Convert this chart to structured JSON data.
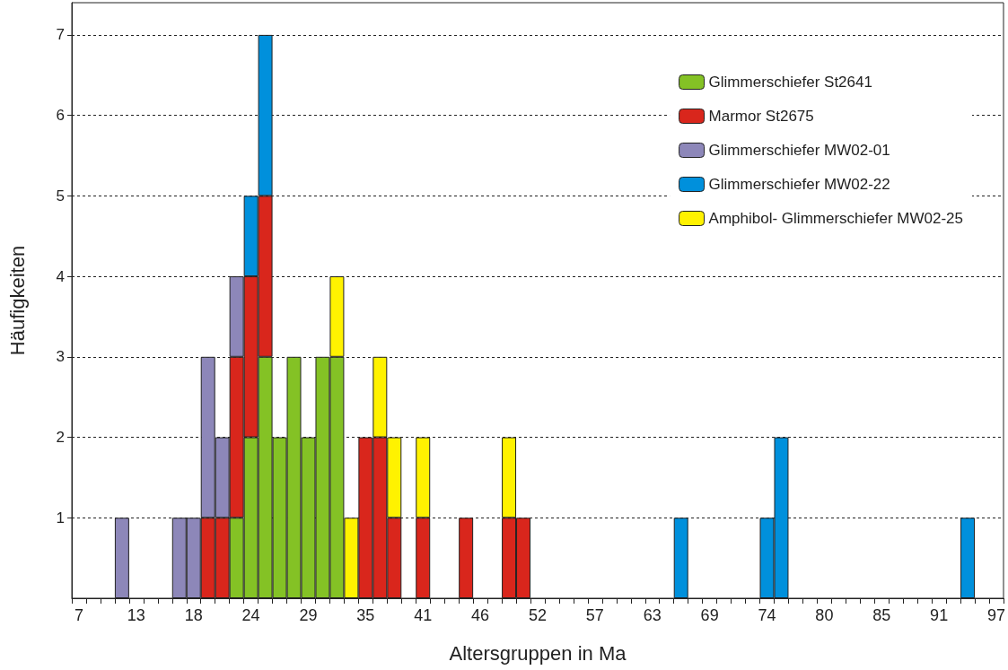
{
  "chart_data": {
    "type": "bar",
    "stacked": true,
    "xlabel": "Altersgruppen in Ma",
    "ylabel": "Häufigkeiten",
    "categories": [
      "7",
      null,
      null,
      null,
      "13",
      null,
      null,
      null,
      "18",
      null,
      null,
      null,
      "24",
      null,
      null,
      null,
      "29",
      null,
      null,
      null,
      "35",
      null,
      null,
      null,
      "41",
      null,
      null,
      null,
      "46",
      null,
      null,
      null,
      "52",
      null,
      null,
      null,
      "57",
      null,
      null,
      null,
      "63",
      null,
      null,
      null,
      "69",
      null,
      null,
      null,
      "74",
      null,
      null,
      null,
      "80",
      null,
      null,
      null,
      "85",
      null,
      null,
      null,
      "91",
      null,
      null,
      null,
      "97"
    ],
    "series": [
      {
        "name": "Glimmerschiefer St2641",
        "color": "#84c225",
        "values": [
          null,
          null,
          null,
          null,
          null,
          null,
          null,
          null,
          null,
          null,
          null,
          1,
          2,
          3,
          2,
          3,
          2,
          3,
          3,
          null,
          null,
          null,
          null,
          null,
          null,
          null,
          null,
          null,
          null,
          null,
          null,
          null,
          null,
          null,
          null,
          null,
          null,
          null,
          null,
          null,
          null,
          null,
          null,
          null,
          null,
          null,
          null,
          null,
          null,
          null,
          null,
          null,
          null,
          null,
          null,
          null,
          null,
          null,
          null,
          null,
          null,
          null,
          null,
          null,
          null
        ]
      },
      {
        "name": "Marmor St2675",
        "color": "#d9261c",
        "values": [
          null,
          null,
          null,
          null,
          null,
          null,
          null,
          null,
          null,
          1,
          1,
          2,
          2,
          2,
          null,
          null,
          null,
          null,
          null,
          null,
          2,
          2,
          1,
          null,
          1,
          null,
          null,
          1,
          null,
          null,
          1,
          1,
          null,
          null,
          null,
          null,
          null,
          null,
          null,
          null,
          null,
          null,
          null,
          null,
          null,
          null,
          null,
          null,
          null,
          null,
          null,
          null,
          null,
          null,
          null,
          null,
          null,
          null,
          null,
          null,
          null,
          null,
          null,
          null,
          null
        ]
      },
      {
        "name": "Glimmerschiefer MW02-01",
        "color": "#8d87b9",
        "values": [
          null,
          null,
          null,
          1,
          null,
          null,
          null,
          1,
          1,
          2,
          1,
          1,
          null,
          null,
          null,
          null,
          null,
          null,
          null,
          null,
          null,
          null,
          null,
          null,
          null,
          null,
          null,
          null,
          null,
          null,
          null,
          null,
          null,
          null,
          null,
          null,
          null,
          null,
          null,
          null,
          null,
          null,
          null,
          null,
          null,
          null,
          null,
          null,
          null,
          null,
          null,
          null,
          null,
          null,
          null,
          null,
          null,
          null,
          null,
          null,
          null,
          null,
          null,
          null,
          null
        ]
      },
      {
        "name": "Glimmerschiefer MW02-22",
        "color": "#0090dc",
        "values": [
          null,
          null,
          null,
          null,
          null,
          null,
          null,
          null,
          null,
          null,
          null,
          null,
          1,
          2,
          null,
          null,
          null,
          null,
          null,
          null,
          null,
          null,
          null,
          null,
          null,
          null,
          null,
          null,
          null,
          null,
          null,
          null,
          null,
          null,
          null,
          null,
          null,
          null,
          null,
          null,
          null,
          null,
          1,
          null,
          null,
          null,
          null,
          null,
          1,
          2,
          null,
          null,
          null,
          null,
          null,
          null,
          null,
          null,
          null,
          null,
          null,
          null,
          1,
          null,
          null
        ]
      },
      {
        "name": "Amphibol- Glimmerschiefer MW02-25",
        "color": "#fff200",
        "values": [
          null,
          null,
          null,
          null,
          null,
          null,
          null,
          null,
          null,
          null,
          null,
          null,
          null,
          null,
          null,
          null,
          null,
          null,
          1,
          1,
          null,
          1,
          1,
          null,
          1,
          null,
          null,
          null,
          null,
          null,
          1,
          null,
          null,
          null,
          null,
          null,
          null,
          null,
          null,
          null,
          null,
          null,
          null,
          null,
          null,
          null,
          null,
          null,
          null,
          null,
          null,
          null,
          null,
          null,
          null,
          null,
          null,
          null,
          null,
          null,
          null,
          null,
          null,
          null,
          null
        ]
      }
    ],
    "ylim": [
      0,
      7.4
    ],
    "yticks": [
      1,
      2,
      3,
      4,
      5,
      6,
      7
    ],
    "grid": "y",
    "legend": "top right"
  }
}
